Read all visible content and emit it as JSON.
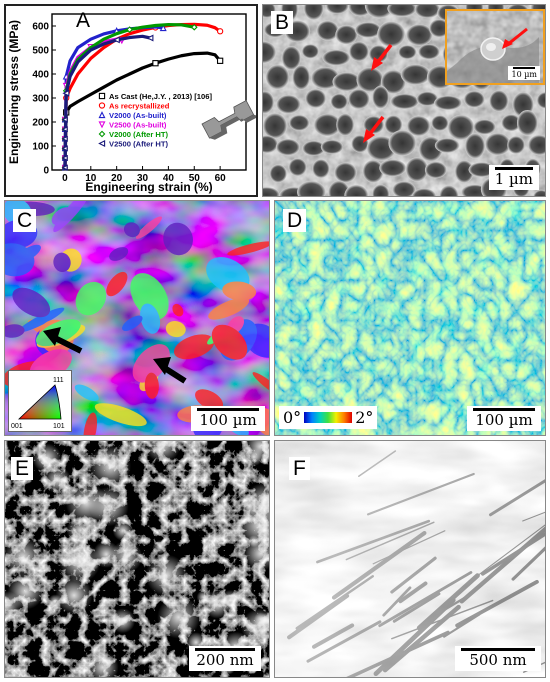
{
  "panels": {
    "A": {
      "letter": "A",
      "chart_data": {
        "type": "line",
        "xlabel": "Engineering strain (%)",
        "ylabel": "Engineering stress (MPa)",
        "xlim": [
          -5,
          70
        ],
        "ylim": [
          0,
          650
        ],
        "x_ticks": [
          "0",
          "10",
          "20",
          "30",
          "40",
          "50",
          "60"
        ],
        "y_ticks": [
          "0",
          "100",
          "200",
          "300",
          "400",
          "500",
          "600"
        ],
        "legend_position": "bottom-right",
        "series": [
          {
            "name": "As Cast (He,J.Y. , 2013) [106]",
            "color": "#000000",
            "marker": "square",
            "x": [
              0,
              0.5,
              2,
              5,
              10,
              15,
              20,
              25,
              30,
              35,
              40,
              45,
              50,
              55,
              58,
              60
            ],
            "y": [
              0,
              240,
              265,
              285,
              315,
              345,
              375,
              400,
              425,
              445,
              462,
              476,
              485,
              487,
              480,
              455
            ]
          },
          {
            "name": "As recrystallized",
            "color": "#ff0000",
            "marker": "circle",
            "x": [
              0,
              0.5,
              2,
              5,
              10,
              15,
              20,
              25,
              30,
              35,
              40,
              45,
              50,
              55,
              58,
              60
            ],
            "y": [
              0,
              300,
              340,
              400,
              465,
              510,
              545,
              568,
              583,
              594,
              602,
              606,
              607,
              603,
              593,
              578
            ]
          },
          {
            "name": "V2000 (As-built)",
            "color": "#2222cc",
            "marker": "triangle-up",
            "x": [
              0,
              0.5,
              2,
              5,
              10,
              15,
              20,
              25,
              30,
              35,
              38
            ],
            "y": [
              0,
              390,
              455,
              510,
              545,
              567,
              580,
              588,
              593,
              596,
              592
            ]
          },
          {
            "name": "V2500 (As-built)",
            "color": "#e000e0",
            "marker": "triangle-down",
            "x": [
              0,
              0.5,
              2,
              5,
              10,
              15,
              20,
              22
            ],
            "y": [
              0,
              350,
              410,
              470,
              512,
              535,
              545,
              540
            ]
          },
          {
            "name": "V2000 (After HT)",
            "color": "#009900",
            "marker": "diamond",
            "x": [
              0,
              0.5,
              2,
              5,
              10,
              15,
              20,
              25,
              30,
              35,
              40,
              45,
              50
            ],
            "y": [
              0,
              330,
              400,
              460,
              510,
              545,
              568,
              585,
              595,
              602,
              606,
              605,
              595
            ]
          },
          {
            "name": "V2500 (After HT)",
            "color": "#1a1a7a",
            "marker": "triangle-left",
            "x": [
              0,
              0.5,
              2,
              5,
              10,
              15,
              20,
              25,
              30,
              33
            ],
            "y": [
              0,
              320,
              390,
              450,
              500,
              525,
              542,
              552,
              557,
              550
            ]
          }
        ]
      }
    },
    "B": {
      "letter": "B",
      "scale_bar": "1 µm",
      "inset_scale_bar": "10 µm"
    },
    "C": {
      "letter": "C",
      "scale_bar": "100 µm",
      "key": {
        "top": "111",
        "left": "001",
        "right": "101"
      }
    },
    "D": {
      "letter": "D",
      "scale_bar": "100 µm",
      "colorbar_min": "0°",
      "colorbar_max": "2°"
    },
    "E": {
      "letter": "E",
      "scale_bar": "200 nm"
    },
    "F": {
      "letter": "F",
      "scale_bar": "500 nm"
    }
  },
  "colors": {
    "arrow_red": "#ff1010",
    "arrow_black": "#000000",
    "inset_border": "#f0a020"
  }
}
